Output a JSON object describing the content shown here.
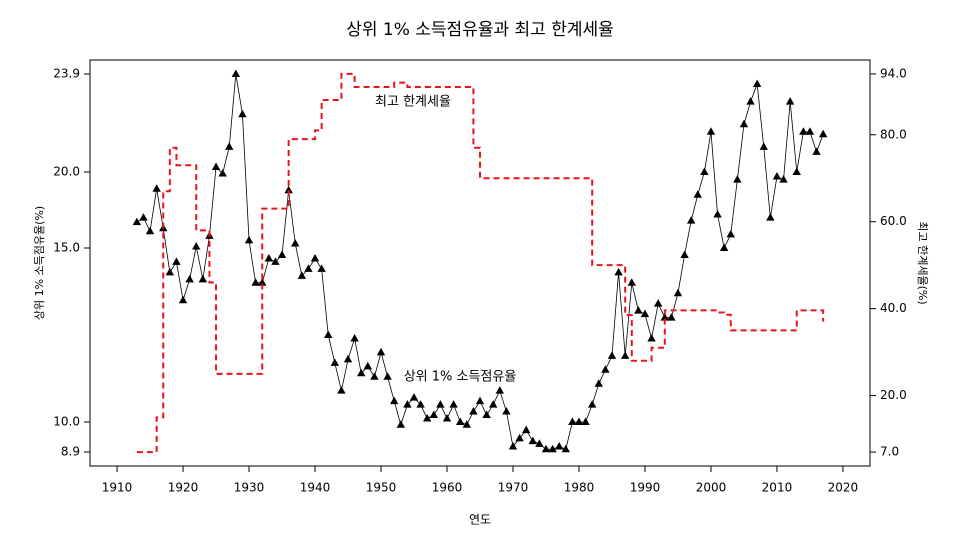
{
  "chart_data": {
    "type": "line",
    "title": "상위 1% 소득점유율과 최고 한계세율",
    "xlabel": "연도",
    "ylabel": "상위 1% 소득점유율(%)",
    "y2label": "최고 한계세율(%)",
    "x": [
      1913,
      1914,
      1915,
      1916,
      1917,
      1918,
      1919,
      1920,
      1921,
      1922,
      1923,
      1924,
      1925,
      1926,
      1927,
      1928,
      1929,
      1930,
      1931,
      1932,
      1933,
      1934,
      1935,
      1936,
      1937,
      1938,
      1939,
      1940,
      1941,
      1942,
      1943,
      1944,
      1945,
      1946,
      1947,
      1948,
      1949,
      1950,
      1951,
      1952,
      1953,
      1954,
      1955,
      1956,
      1957,
      1958,
      1959,
      1960,
      1961,
      1962,
      1963,
      1964,
      1965,
      1966,
      1967,
      1968,
      1969,
      1970,
      1971,
      1972,
      1973,
      1974,
      1975,
      1976,
      1977,
      1978,
      1979,
      1980,
      1981,
      1982,
      1983,
      1984,
      1985,
      1986,
      1987,
      1988,
      1989,
      1990,
      1991,
      1992,
      1993,
      1994,
      1995,
      1996,
      1997,
      1998,
      1999,
      2000,
      2001,
      2002,
      2003,
      2004,
      2005,
      2006,
      2007,
      2008,
      2009,
      2010,
      2011,
      2012,
      2013,
      2014,
      2015,
      2016,
      2017
    ],
    "series": [
      {
        "name": "상위 1% 소득점유율",
        "color": "#000000",
        "marker": "triangle",
        "values": [
          16.7,
          17.0,
          16.1,
          18.9,
          16.3,
          14.3,
          14.6,
          13.5,
          14.1,
          15.1,
          14.1,
          15.8,
          20.2,
          19.9,
          21.0,
          23.9,
          22.3,
          15.5,
          14.0,
          14.0,
          14.7,
          14.6,
          14.8,
          18.8,
          15.3,
          14.2,
          14.4,
          14.7,
          14.4,
          12.5,
          11.7,
          10.9,
          11.8,
          12.4,
          11.4,
          11.6,
          11.3,
          12.0,
          11.3,
          10.6,
          9.9,
          10.5,
          10.7,
          10.5,
          10.1,
          10.2,
          10.5,
          10.1,
          10.5,
          10.0,
          9.9,
          10.3,
          10.6,
          10.2,
          10.5,
          10.9,
          10.3,
          9.1,
          9.4,
          9.7,
          9.3,
          9.2,
          9.0,
          9.0,
          9.1,
          9.0,
          10.0,
          10.0,
          10.0,
          10.5,
          11.1,
          11.5,
          11.9,
          14.3,
          11.9,
          14.0,
          13.2,
          13.1,
          12.4,
          13.4,
          13.0,
          13.0,
          13.7,
          14.8,
          16.8,
          18.5,
          20.0,
          21.6,
          17.2,
          15.0,
          15.9,
          19.5,
          21.9,
          22.8,
          23.5,
          21.0,
          17.0,
          19.7,
          19.5,
          22.8,
          20.0,
          21.6,
          21.6,
          20.8,
          21.5
        ]
      },
      {
        "name": "최고 한계세율",
        "color": "#e8141c",
        "axis": "y2",
        "dashed": true,
        "step": true,
        "values": [
          7,
          7,
          7,
          15,
          67,
          77,
          73,
          73,
          73,
          58,
          58,
          46,
          25,
          25,
          25,
          25,
          25,
          25,
          25,
          63,
          63,
          63,
          63,
          79,
          79,
          79,
          79,
          81,
          88,
          88,
          88,
          94,
          94,
          91,
          91,
          91,
          91,
          91,
          91,
          92,
          92,
          91,
          91,
          91,
          91,
          91,
          91,
          91,
          91,
          91,
          91,
          77,
          70,
          70,
          70,
          70,
          70,
          70,
          70,
          70,
          70,
          70,
          70,
          70,
          70,
          70,
          70,
          70,
          70,
          50,
          50,
          50,
          50,
          50,
          38.5,
          28,
          28,
          28,
          31,
          31,
          39.6,
          39.6,
          39.6,
          39.6,
          39.6,
          39.6,
          39.6,
          39.6,
          39.1,
          38.6,
          35,
          35,
          35,
          35,
          35,
          35,
          35,
          35,
          35,
          35,
          39.6,
          39.6,
          39.6,
          39.6,
          37
        ]
      }
    ],
    "xlim": [
      1905.9,
      2024.1
    ],
    "xticks": [
      1910,
      1920,
      1930,
      1940,
      1950,
      1960,
      1970,
      1980,
      1990,
      2000,
      2010,
      2020
    ],
    "ylim": [
      8.9,
      23.9
    ],
    "yticks": [
      {
        "value": 8.9,
        "label": "8.9"
      },
      {
        "value": 10,
        "label": "10.0"
      },
      {
        "value": 15,
        "label": "15.0"
      },
      {
        "value": 20,
        "label": "20.0"
      },
      {
        "value": 23.9,
        "label": "23.9"
      }
    ],
    "y2lim": [
      3.8,
      97.2
    ],
    "y2ticks": [
      {
        "value": 7,
        "label": "7.0"
      },
      {
        "value": 20,
        "label": "20.0"
      },
      {
        "value": 40,
        "label": "40.0"
      },
      {
        "value": 60,
        "label": "60.0"
      },
      {
        "value": 80,
        "label": "80.0"
      },
      {
        "value": 94,
        "label": "94.0"
      }
    ],
    "grid": false
  }
}
